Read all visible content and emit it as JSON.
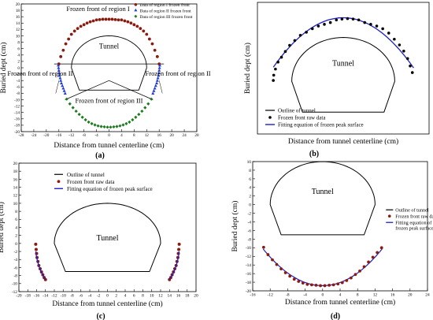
{
  "figure": {
    "panels": [
      {
        "id": "a",
        "label": "(a)"
      },
      {
        "id": "b",
        "label": "(b)"
      },
      {
        "id": "c",
        "label": "(c)"
      },
      {
        "id": "d",
        "label": "(d)"
      }
    ]
  },
  "colors": {
    "region1": "#8b1a10",
    "region2": "#1f3ad6",
    "region3": "#1e7a1e",
    "raw": "#8b1a10",
    "raw_b": "#000000",
    "fit": "#1f1fc8",
    "tunnel": "#000000"
  },
  "chart_data": [
    {
      "panel": "a",
      "type": "scatter",
      "xlabel": "Distance from tunnel centerline (cm)",
      "ylabel": "Buried dept (cm)",
      "xlim": [
        -28,
        28
      ],
      "ylim": [
        -20,
        20
      ],
      "xticks": [
        -28,
        -24,
        -20,
        -16,
        -12,
        -8,
        -4,
        0,
        4,
        8,
        12,
        16,
        20,
        24,
        28
      ],
      "yticks": [
        -20,
        -18,
        -16,
        -14,
        -12,
        -10,
        -8,
        -6,
        -4,
        -2,
        0,
        2,
        4,
        6,
        8,
        10,
        12,
        14,
        16,
        18,
        20
      ],
      "legend": [
        "Data of region I frozen front",
        "Data of region II frozen front",
        "Data of region III frozen front"
      ],
      "annotations": {
        "region1": "Frozen front of region I",
        "region2_left": "Frozen front of region II",
        "region2_right": "Frozen front of region II",
        "region3": "Frozen front of region III",
        "tunnel": "Tunnel"
      },
      "series": [
        {
          "name": "Data of region I frozen front",
          "x": [
            -16,
            -15.4,
            -14.6,
            -13.8,
            -12.9,
            -12,
            -11,
            -10,
            -9,
            -8,
            -7,
            -6,
            -5,
            -4,
            -3,
            -2,
            -1,
            0,
            1,
            2,
            3,
            4,
            5,
            6,
            7,
            8,
            9,
            10,
            11,
            12,
            12.9,
            13.8,
            14.6,
            15.4,
            16
          ],
          "y": [
            1.2,
            3.5,
            5.5,
            7.5,
            9.0,
            10.5,
            11.5,
            12.3,
            13.0,
            13.5,
            14.0,
            14.4,
            14.7,
            15.0,
            15.1,
            15.2,
            15.2,
            15.2,
            15.2,
            15.1,
            15.0,
            15.0,
            14.7,
            14.4,
            14.0,
            13.5,
            13.0,
            12.3,
            11.5,
            10.5,
            9.0,
            7.5,
            5.5,
            3.5,
            1.2
          ]
        },
        {
          "name": "Data of region II frozen front",
          "x": [
            -16.2,
            -16.1,
            -16.0,
            -15.9,
            -15.8,
            -15.6,
            -15.4,
            -15.2,
            -14.9,
            -14.6,
            -14.3,
            -14.0,
            14.0,
            14.3,
            14.6,
            14.9,
            15.2,
            15.4,
            15.6,
            15.8,
            15.9,
            16.0,
            16.1,
            16.2
          ],
          "y": [
            0.8,
            0,
            -0.8,
            -1.6,
            -2.4,
            -3.2,
            -4.0,
            -4.8,
            -5.6,
            -6.4,
            -7.2,
            -8.0,
            -8.0,
            -7.2,
            -6.4,
            -5.6,
            -4.8,
            -4.0,
            -3.2,
            -2.4,
            -1.6,
            -0.8,
            0,
            0.8
          ]
        },
        {
          "name": "Data of region III frozen front",
          "x": [
            -13.5,
            -12.5,
            -11.5,
            -10.5,
            -9.5,
            -8.5,
            -7.5,
            -6.5,
            -5.5,
            -4.5,
            -3.5,
            -2.5,
            -1.5,
            -0.5,
            0.5,
            1.5,
            2.5,
            3.5,
            4.5,
            5.5,
            6.5,
            7.5,
            8.5,
            9.5,
            10.5,
            11.5,
            12.5,
            13.5
          ],
          "y": [
            -9.8,
            -11.3,
            -12.5,
            -13.6,
            -14.6,
            -15.5,
            -16.3,
            -17.0,
            -17.5,
            -17.9,
            -18.2,
            -18.4,
            -18.5,
            -18.6,
            -18.6,
            -18.5,
            -18.4,
            -18.2,
            -17.9,
            -17.5,
            -17.0,
            -16.3,
            -15.5,
            -14.6,
            -13.6,
            -12.5,
            -11.3,
            -9.8
          ]
        }
      ]
    },
    {
      "panel": "b",
      "type": "scatter",
      "xlabel": "Distance from tunnel centerline (cm)",
      "ylabel": "Buried dept (cm)",
      "xlim": [
        -20,
        20
      ],
      "ylim": [
        -12,
        18
      ],
      "legend": [
        "Outline of tunnel",
        "Frozen front raw data",
        "Fitting equation of frozen peak surface"
      ],
      "annotations": {
        "tunnel": "Tunnel"
      },
      "series": [
        {
          "name": "Frozen front raw data",
          "x": [
            -16.3,
            -16.2,
            -15.8,
            -15.2,
            -14.4,
            -13.5,
            -12.5,
            -11.3,
            -10,
            -8.6,
            -7.2,
            -5.8,
            -4.4,
            -3,
            -1.6,
            -0.3,
            1,
            2.3,
            3.6,
            5,
            6.4,
            7.8,
            9.2,
            10.6,
            11.9,
            13.1,
            14.1,
            15,
            15.6,
            16.1
          ],
          "y": [
            0.2,
            1.4,
            2.8,
            4.4,
            5.5,
            6.8,
            8.2,
            9.3,
            10.5,
            11.2,
            12.0,
            12.6,
            13.0,
            13.4,
            14.0,
            14.2,
            14.3,
            14.2,
            14.0,
            13.4,
            13.0,
            12.6,
            12.0,
            11.0,
            9.6,
            8.3,
            6.9,
            5.2,
            3.5,
            2.0
          ]
        }
      ],
      "fit": {
        "name": "Fitting equation of frozen peak surface",
        "a": -0.0425,
        "c": 14.5,
        "xmin": -16.3,
        "xmax": 16.4
      }
    },
    {
      "panel": "c",
      "type": "scatter",
      "xlabel": "Distance from tunnel centerline (cm)",
      "ylabel": "Buried dept (cm)",
      "xlim": [
        -20,
        20
      ],
      "ylim": [
        -12,
        20
      ],
      "xticks": [
        -20,
        -18,
        -16,
        -14,
        -12,
        -10,
        -8,
        -6,
        -4,
        -2,
        0,
        2,
        4,
        6,
        8,
        10,
        12,
        14,
        16,
        18,
        20
      ],
      "yticks": [
        -12,
        -10,
        -8,
        -6,
        -4,
        -2,
        0,
        2,
        4,
        6,
        8,
        10,
        12,
        14,
        16,
        18,
        20
      ],
      "legend": [
        "Outline of tunnel",
        "Frozen front raw data",
        "Fitting equation of frozen peak surface"
      ],
      "annotations": {
        "tunnel": "Tunnel"
      },
      "series": [
        {
          "name": "Frozen front raw data",
          "x": [
            -16.2,
            -16.1,
            -16.0,
            -15.9,
            -15.7,
            -15.5,
            -15.2,
            -14.9,
            -14.6,
            -14.3,
            -14.0,
            14.0,
            14.3,
            14.6,
            14.9,
            15.2,
            15.5,
            15.7,
            15.9,
            16.0,
            16.1,
            16.2
          ],
          "y": [
            -0.2,
            -1.5,
            -2.5,
            -3.5,
            -4.5,
            -5.5,
            -6.3,
            -7.1,
            -7.8,
            -8.5,
            -9.0,
            -9.0,
            -8.5,
            -7.8,
            -7.1,
            -6.3,
            -5.5,
            -4.5,
            -3.5,
            -2.5,
            -1.5,
            -0.2
          ]
        }
      ],
      "fit": {
        "name": "Fitting equation of frozen peak surface",
        "left": [
          [
            -16.2,
            -2.0
          ],
          [
            -16.0,
            -3.5
          ],
          [
            -15.6,
            -5.2
          ],
          [
            -15.1,
            -6.8
          ],
          [
            -14.5,
            -8.1
          ],
          [
            -14.0,
            -8.9
          ]
        ],
        "right": [
          [
            14.0,
            -8.9
          ],
          [
            14.5,
            -8.1
          ],
          [
            15.1,
            -6.8
          ],
          [
            15.6,
            -5.2
          ],
          [
            16.0,
            -3.5
          ],
          [
            16.2,
            -2.0
          ]
        ]
      }
    },
    {
      "panel": "d",
      "type": "scatter",
      "xlabel": "Distance from tunnel centerline (cm)",
      "ylabel": "Buried dept (cm)",
      "xlim": [
        -16,
        24
      ],
      "ylim": [
        -20,
        10
      ],
      "xticks": [
        -16,
        -12,
        -8,
        -4,
        0,
        4,
        8,
        12,
        16,
        20,
        24
      ],
      "yticks": [
        -20,
        -18,
        -16,
        -14,
        -12,
        -10,
        -8,
        -6,
        -4,
        -2,
        0,
        2,
        4,
        6,
        8,
        10
      ],
      "legend": [
        "Outline of tunnel",
        "Frozen front raw data",
        "Fitting equation of frozen peak surface"
      ],
      "annotations": {
        "tunnel": "Tunnel"
      },
      "series": [
        {
          "name": "Frozen front raw data",
          "x": [
            -13.5,
            -12.5,
            -11.5,
            -10.5,
            -9.5,
            -8.5,
            -7.5,
            -6.5,
            -5.5,
            -4.5,
            -3.5,
            -2.5,
            -1.5,
            -0.5,
            0.5,
            1.5,
            2.5,
            3.5,
            4.5,
            5.5,
            6.5,
            7.5,
            8.5,
            9.5,
            10.5,
            11.5,
            12.5,
            13.5
          ],
          "y": [
            -9.9,
            -11.6,
            -12.8,
            -13.9,
            -14.9,
            -15.8,
            -16.6,
            -17.3,
            -17.8,
            -18.2,
            -18.5,
            -18.6,
            -18.7,
            -18.8,
            -18.8,
            -18.7,
            -18.6,
            -18.4,
            -18.1,
            -17.6,
            -17.0,
            -16.2,
            -15.4,
            -14.4,
            -13.3,
            -12.2,
            -11.1,
            -10.0
          ]
        }
      ],
      "fit": {
        "name": "Fitting equation of frozen peak surface",
        "a": 0.046,
        "c": -18.8,
        "xmin": -13.6,
        "xmax": 13.6
      }
    }
  ]
}
